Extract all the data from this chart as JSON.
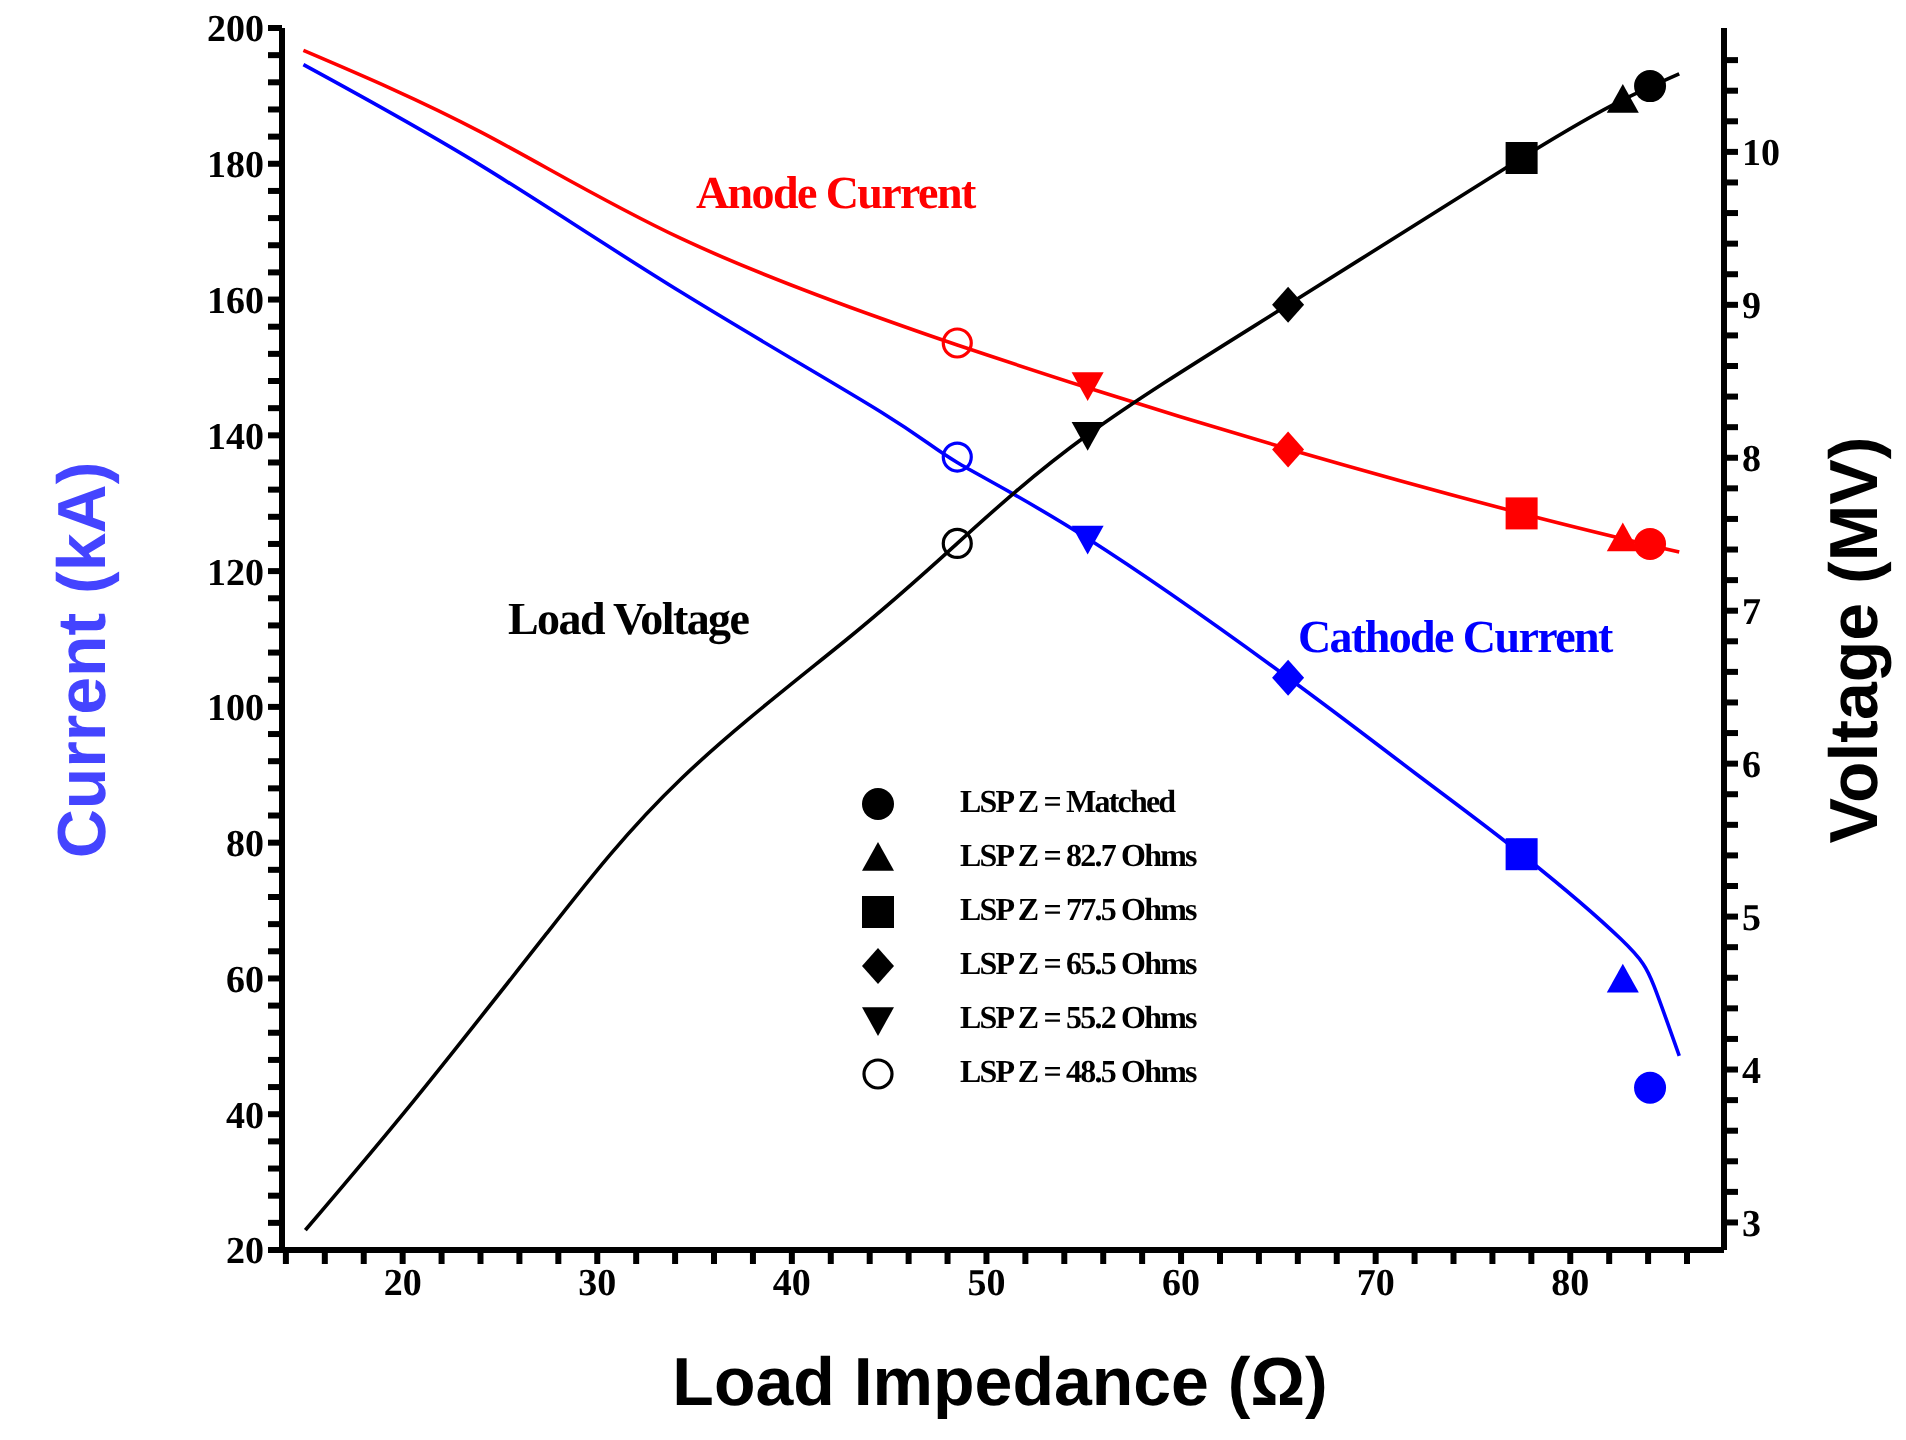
{
  "chart_data": {
    "type": "line",
    "xlabel": "Load Impedance (Ω)",
    "ylabel": "Current (kA)",
    "y2label": "Voltage (MV)",
    "xlim": [
      13.8,
      87.9
    ],
    "ylim": [
      20,
      200
    ],
    "y2lim": [
      2.82,
      10.81
    ],
    "xticks": [
      {
        "value": 14,
        "label": null
      },
      {
        "value": 16,
        "label": null
      },
      {
        "value": 18,
        "label": null
      },
      20,
      {
        "value": 22,
        "label": null
      },
      {
        "value": 24,
        "label": null
      },
      {
        "value": 26,
        "label": null
      },
      {
        "value": 28,
        "label": null
      },
      30,
      {
        "value": 32,
        "label": null
      },
      {
        "value": 34,
        "label": null
      },
      {
        "value": 36,
        "label": null
      },
      {
        "value": 38,
        "label": null
      },
      40,
      {
        "value": 42,
        "label": null
      },
      {
        "value": 44,
        "label": null
      },
      {
        "value": 46,
        "label": null
      },
      {
        "value": 48,
        "label": null
      },
      50,
      {
        "value": 52,
        "label": null
      },
      {
        "value": 54,
        "label": null
      },
      {
        "value": 56,
        "label": null
      },
      {
        "value": 58,
        "label": null
      },
      60,
      {
        "value": 62,
        "label": null
      },
      {
        "value": 64,
        "label": null
      },
      {
        "value": 66,
        "label": null
      },
      {
        "value": 68,
        "label": null
      },
      70,
      {
        "value": 72,
        "label": null
      },
      {
        "value": 74,
        "label": null
      },
      {
        "value": 76,
        "label": null
      },
      {
        "value": 78,
        "label": null
      },
      80,
      {
        "value": 82,
        "label": null
      },
      {
        "value": 84,
        "label": null
      },
      {
        "value": 86,
        "label": null
      }
    ],
    "yticks": [
      20,
      {
        "value": 24,
        "label": null
      },
      {
        "value": 28,
        "label": null
      },
      {
        "value": 32,
        "label": null
      },
      {
        "value": 36,
        "label": null
      },
      40,
      {
        "value": 44,
        "label": null
      },
      {
        "value": 48,
        "label": null
      },
      {
        "value": 52,
        "label": null
      },
      {
        "value": 56,
        "label": null
      },
      60,
      {
        "value": 64,
        "label": null
      },
      {
        "value": 68,
        "label": null
      },
      {
        "value": 72,
        "label": null
      },
      {
        "value": 76,
        "label": null
      },
      80,
      {
        "value": 84,
        "label": null
      },
      {
        "value": 88,
        "label": null
      },
      {
        "value": 92,
        "label": null
      },
      {
        "value": 96,
        "label": null
      },
      100,
      {
        "value": 104,
        "label": null
      },
      {
        "value": 108,
        "label": null
      },
      {
        "value": 112,
        "label": null
      },
      {
        "value": 116,
        "label": null
      },
      120,
      {
        "value": 124,
        "label": null
      },
      {
        "value": 128,
        "label": null
      },
      {
        "value": 132,
        "label": null
      },
      {
        "value": 136,
        "label": null
      },
      140,
      {
        "value": 144,
        "label": null
      },
      {
        "value": 148,
        "label": null
      },
      {
        "value": 152,
        "label": null
      },
      {
        "value": 156,
        "label": null
      },
      160,
      {
        "value": 164,
        "label": null
      },
      {
        "value": 168,
        "label": null
      },
      {
        "value": 172,
        "label": null
      },
      {
        "value": 176,
        "label": null
      },
      180,
      {
        "value": 184,
        "label": null
      },
      {
        "value": 188,
        "label": null
      },
      {
        "value": 192,
        "label": null
      },
      {
        "value": 196,
        "label": null
      },
      200
    ],
    "y2ticks": [
      3,
      {
        "value": 3.2,
        "label": null
      },
      {
        "value": 3.4,
        "label": null
      },
      {
        "value": 3.6,
        "label": null
      },
      {
        "value": 3.8,
        "label": null
      },
      4,
      {
        "value": 4.2,
        "label": null
      },
      {
        "value": 4.4,
        "label": null
      },
      {
        "value": 4.6,
        "label": null
      },
      {
        "value": 4.8,
        "label": null
      },
      5,
      {
        "value": 5.2,
        "label": null
      },
      {
        "value": 5.4,
        "label": null
      },
      {
        "value": 5.6,
        "label": null
      },
      {
        "value": 5.8,
        "label": null
      },
      6,
      {
        "value": 6.2,
        "label": null
      },
      {
        "value": 6.4,
        "label": null
      },
      {
        "value": 6.6,
        "label": null
      },
      {
        "value": 6.8,
        "label": null
      },
      7,
      {
        "value": 7.2,
        "label": null
      },
      {
        "value": 7.4,
        "label": null
      },
      {
        "value": 7.6,
        "label": null
      },
      {
        "value": 7.8,
        "label": null
      },
      8,
      {
        "value": 8.2,
        "label": null
      },
      {
        "value": 8.4,
        "label": null
      },
      {
        "value": 8.6,
        "label": null
      },
      {
        "value": 8.8,
        "label": null
      },
      9,
      {
        "value": 9.2,
        "label": null
      },
      {
        "value": 9.4,
        "label": null
      },
      {
        "value": 9.6,
        "label": null
      },
      {
        "value": 9.8,
        "label": null
      },
      10,
      {
        "value": 10.2,
        "label": null
      },
      {
        "value": 10.4,
        "label": null
      },
      {
        "value": 10.6,
        "label": null
      }
    ],
    "legend": "bottom",
    "marker": "none",
    "line_style": "solid",
    "series": [
      {
        "name": "Anode Current",
        "color": "#ff0000",
        "x": [
          14.9,
          24.0,
          34.3,
          44.6,
          48.5,
          55.2,
          65.5,
          77.5,
          85.6
        ],
        "values": [
          196.7,
          184.7,
          169,
          157.2,
          153.3,
          147,
          138,
          128.5,
          122.8
        ]
      },
      {
        "name": "Cathode Current",
        "color": "#0000ff",
        "x": [
          14.9,
          24.0,
          34.3,
          44.6,
          48.5,
          55.2,
          65.5,
          72,
          77.5,
          82.6,
          84.3,
          85.6
        ],
        "values": [
          194.6,
          179.8,
          161.1,
          143.4,
          136,
          124.8,
          104.3,
          90.3,
          78.3,
          65.8,
          58.9,
          48.6
        ]
      },
      {
        "name": "Load Voltage",
        "axis": "y2",
        "color": "#000000",
        "x": [
          15.0,
          20.6,
          27.4,
          34.3,
          42.8,
          48.5,
          55.2,
          65.5,
          77.5,
          82.7,
          85.6
        ],
        "values": [
          2.95,
          3.8,
          4.89,
          5.9,
          6.81,
          7.44,
          8.15,
          9.0,
          9.96,
          10.34,
          10.51
        ]
      },
      {
        "name": "LSP Z = Matched",
        "type": "scatter",
        "axis": "y2",
        "marker": "circle",
        "color": "#000000",
        "x": [
          84.1
        ],
        "values": [
          10.43
        ]
      },
      {
        "type": "scatter",
        "marker": "circle",
        "colors": [
          "#ff0000",
          "#0000ff"
        ],
        "x": [
          84.1,
          84.1
        ],
        "values": [
          124.0,
          43.9
        ]
      },
      {
        "name": "LSP Z = 82.7 Ohms",
        "type": "scatter",
        "axis": "y2",
        "marker": "triangle",
        "color": "#000000",
        "x": [
          82.7
        ],
        "values": [
          10.34
        ]
      },
      {
        "type": "scatter",
        "marker": "triangle",
        "colors": [
          "#ff0000",
          "#0000ff"
        ],
        "x": [
          82.7,
          82.7
        ],
        "values": [
          124.8,
          59.8
        ]
      },
      {
        "name": "LSP Z = 77.5 Ohms",
        "type": "scatter",
        "axis": "y2",
        "marker": "square",
        "color": "#000000",
        "x": [
          77.5
        ],
        "values": [
          9.96
        ]
      },
      {
        "type": "scatter",
        "marker": "square",
        "colors": [
          "#ff0000",
          "#0000ff"
        ],
        "x": [
          77.5,
          77.5
        ],
        "values": [
          128.5,
          78.3
        ]
      },
      {
        "name": "LSP Z = 65.5 Ohms",
        "type": "scatter",
        "axis": "y2",
        "marker": "diamond",
        "color": "#000000",
        "x": [
          65.5
        ],
        "values": [
          9.0
        ]
      },
      {
        "type": "scatter",
        "marker": "diamond",
        "colors": [
          "#ff0000",
          "#0000ff"
        ],
        "x": [
          65.5,
          65.5
        ],
        "values": [
          137.9,
          104.3
        ]
      },
      {
        "name": "LSP Z = 55.2 Ohms",
        "type": "scatter",
        "axis": "y2",
        "marker": "triangle-down",
        "color": "#000000",
        "x": [
          55.2
        ],
        "values": [
          8.15
        ]
      },
      {
        "type": "scatter",
        "marker": "triangle-down",
        "colors": [
          "#ff0000",
          "#0000ff"
        ],
        "x": [
          55.2,
          55.2
        ],
        "values": [
          147.4,
          124.8
        ]
      },
      {
        "name": "LSP Z = 48.5 Ohms",
        "type": "scatter",
        "axis": "y2",
        "marker": "circle-open",
        "color": "#000000",
        "x": [
          48.5
        ],
        "values": [
          7.44
        ]
      },
      {
        "type": "scatter",
        "marker": "circle-open",
        "colors": [
          "#ff0000",
          "#0000ff"
        ],
        "x": [
          48.5,
          48.5
        ],
        "values": [
          153.6,
          136.8
        ]
      }
    ]
  }
}
